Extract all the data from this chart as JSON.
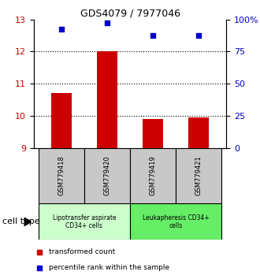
{
  "title": "GDS4079 / 7977046",
  "samples": [
    "GSM779418",
    "GSM779420",
    "GSM779419",
    "GSM779421"
  ],
  "bar_values": [
    10.7,
    12.0,
    9.9,
    9.95
  ],
  "scatter_values": [
    12.7,
    12.9,
    12.5,
    12.5
  ],
  "bar_color": "#cc0000",
  "scatter_color": "#0000cc",
  "ylim_left": [
    9,
    13
  ],
  "ylim_right": [
    0,
    100
  ],
  "yticks_left": [
    9,
    10,
    11,
    12,
    13
  ],
  "yticks_right": [
    0,
    25,
    50,
    75,
    100
  ],
  "ytick_labels_right": [
    "0",
    "25",
    "50",
    "75",
    "100%"
  ],
  "dotted_lines": [
    10,
    11,
    12
  ],
  "groups": [
    {
      "label": "Lipotransfer aspirate\nCD34+ cells",
      "samples": [
        0,
        1
      ],
      "color": "#ccffcc"
    },
    {
      "label": "Leukapheresis CD34+\ncells",
      "samples": [
        2,
        3
      ],
      "color": "#66ee66"
    }
  ],
  "cell_type_label": "cell type",
  "legend_bar_label": "transformed count",
  "legend_scatter_label": "percentile rank within the sample",
  "bar_bottom": 9,
  "bar_width": 0.45,
  "title_fontsize": 9,
  "tick_fontsize": 8,
  "sample_fontsize": 6,
  "group_fontsize": 5.5,
  "legend_fontsize": 6.5,
  "celllabel_fontsize": 8
}
